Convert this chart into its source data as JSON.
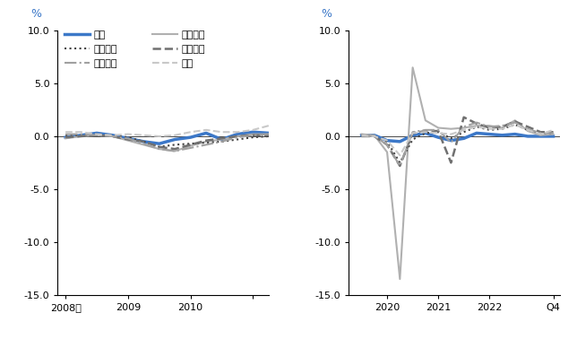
{
  "left_panel": {
    "japan": [
      -0.1,
      0.1,
      0.3,
      0.1,
      -0.2,
      -0.5,
      -0.7,
      -0.3,
      -0.1,
      0.3,
      -0.3,
      0.2,
      0.4,
      0.3,
      0.2,
      0.1
    ],
    "usa": [
      -0.2,
      0.0,
      0.1,
      0.0,
      -0.4,
      -0.8,
      -1.2,
      -1.4,
      -0.9,
      -0.5,
      -0.3,
      0.0,
      0.2,
      0.2,
      0.1,
      0.0
    ],
    "uk": [
      0.1,
      0.1,
      0.2,
      0.1,
      -0.1,
      -0.5,
      -1.0,
      -0.8,
      -0.7,
      -0.6,
      -0.5,
      -0.3,
      -0.1,
      0.0,
      0.1,
      0.1
    ],
    "france": [
      -0.1,
      0.0,
      0.1,
      0.0,
      -0.3,
      -0.5,
      -1.0,
      -1.2,
      -0.8,
      -0.4,
      -0.2,
      0.0,
      0.1,
      0.1,
      0.0,
      0.0
    ],
    "italy": [
      0.2,
      0.2,
      0.1,
      0.0,
      -0.2,
      -0.7,
      -1.2,
      -1.4,
      -1.1,
      -0.8,
      -0.5,
      -0.1,
      0.1,
      0.2,
      0.2,
      0.1
    ],
    "korea": [
      0.4,
      0.4,
      0.2,
      0.1,
      0.2,
      0.1,
      0.0,
      0.1,
      0.4,
      0.6,
      0.4,
      0.4,
      0.6,
      1.0,
      1.5,
      1.2
    ]
  },
  "right_panel": {
    "japan": [
      0.1,
      0.1,
      -0.4,
      -0.5,
      0.1,
      0.3,
      -0.1,
      -0.4,
      -0.2,
      0.3,
      0.2,
      0.1,
      0.2,
      0.0,
      0.0,
      0.0
    ],
    "usa": [
      0.2,
      0.1,
      -1.5,
      -13.5,
      6.5,
      1.5,
      0.8,
      0.7,
      0.8,
      1.0,
      1.0,
      0.8,
      1.5,
      0.5,
      0.1,
      0.2
    ],
    "uk": [
      0.1,
      0.0,
      -0.5,
      -2.5,
      -0.3,
      0.3,
      0.4,
      -0.2,
      0.4,
      0.9,
      0.6,
      0.7,
      1.1,
      0.6,
      0.3,
      0.3
    ],
    "france": [
      0.0,
      0.0,
      -0.8,
      -2.8,
      0.3,
      0.5,
      0.5,
      -2.5,
      1.8,
      1.2,
      0.8,
      0.9,
      1.4,
      0.9,
      0.4,
      0.4
    ],
    "italy": [
      0.0,
      0.0,
      -0.8,
      -2.8,
      0.4,
      0.6,
      0.6,
      -0.6,
      0.9,
      1.3,
      0.9,
      1.0,
      1.3,
      0.7,
      0.3,
      0.3
    ],
    "korea": [
      0.1,
      0.0,
      -0.4,
      -1.8,
      0.3,
      0.4,
      0.3,
      0.2,
      0.6,
      0.9,
      0.7,
      0.7,
      1.1,
      0.6,
      0.2,
      0.6
    ]
  },
  "colors": {
    "japan": "#3c78c8",
    "usa": "#b0b0b0",
    "uk": "#404040",
    "france": "#707070",
    "italy": "#a0a0a0",
    "korea": "#c8c8c8"
  },
  "linestyles": {
    "japan": "-",
    "usa": "-",
    "uk": ":",
    "france": "--",
    "italy": "-.",
    "korea": "--"
  },
  "linewidths": {
    "japan": 2.5,
    "usa": 1.5,
    "uk": 1.5,
    "france": 1.8,
    "italy": 1.5,
    "korea": 1.5
  },
  "legend_labels": {
    "japan": "日本",
    "usa": "アメリカ",
    "uk": "イギリス",
    "france": "フランス",
    "italy": "イタリア",
    "korea": "韓国"
  },
  "ylim": [
    -15.0,
    10.0
  ],
  "yticks": [
    -15.0,
    -10.0,
    -5.0,
    0.0,
    5.0,
    10.0
  ],
  "left_xtick_positions": [
    0,
    4,
    8,
    12
  ],
  "left_xtick_labels": [
    "2008年",
    "2009",
    "2010",
    ""
  ],
  "right_xtick_positions": [
    2,
    6,
    10,
    15
  ],
  "right_xtick_labels": [
    "2020",
    "2021",
    "2022",
    "Q4"
  ],
  "left_xlim": [
    -0.5,
    13.0
  ],
  "right_xlim": [
    -1.0,
    15.5
  ],
  "percent_label": "%"
}
